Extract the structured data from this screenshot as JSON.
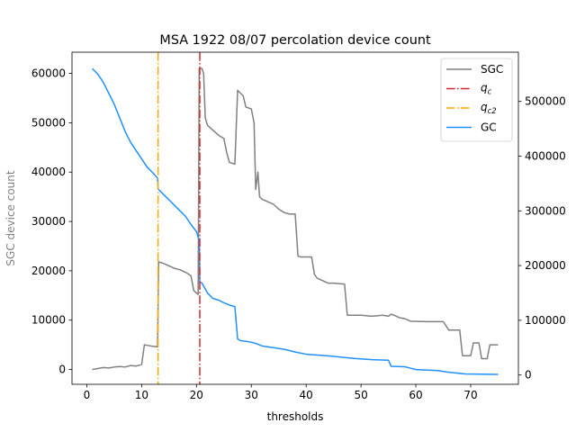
{
  "chart_data": {
    "type": "line",
    "title": "MSA 1922 08/07 percolation device count",
    "xlabel": "thresholds",
    "ylabel": "SGC device count",
    "y2label": "",
    "xlim": [
      -2.7,
      78.7
    ],
    "ylim": [
      -3000,
      64300
    ],
    "y2lim": [
      -17000,
      590000
    ],
    "xticks": [
      0,
      10,
      20,
      30,
      40,
      50,
      60,
      70
    ],
    "yticks": [
      0,
      10000,
      20000,
      30000,
      40000,
      50000,
      60000
    ],
    "y2ticks": [
      0,
      100000,
      200000,
      300000,
      400000,
      500000
    ],
    "grid": false,
    "legend_position": "top-right",
    "vlines": [
      {
        "name": "$q_c$",
        "label_base": "q",
        "label_sub": "c",
        "x": 20.6,
        "color": "#d62728",
        "style": "dashdot"
      },
      {
        "name": "$q_{c2}$",
        "label_base": "q",
        "label_sub": "c2",
        "x": 13.0,
        "color": "#ffa500",
        "style": "dashdot"
      }
    ],
    "series": [
      {
        "name": "SGC",
        "axis": "left",
        "color": "#808080",
        "points": [
          [
            1,
            0
          ],
          [
            2,
            200
          ],
          [
            3,
            400
          ],
          [
            4,
            300
          ],
          [
            5,
            500
          ],
          [
            6,
            600
          ],
          [
            7,
            500
          ],
          [
            8,
            800
          ],
          [
            9,
            700
          ],
          [
            10,
            1000
          ],
          [
            10.5,
            5000
          ],
          [
            11,
            4900
          ],
          [
            12,
            4700
          ],
          [
            12.9,
            4600
          ],
          [
            13.1,
            21800
          ],
          [
            14,
            21500
          ],
          [
            15,
            21000
          ],
          [
            16,
            20500
          ],
          [
            17,
            20200
          ],
          [
            18,
            19700
          ],
          [
            19,
            19000
          ],
          [
            19.5,
            16000
          ],
          [
            20.3,
            15200
          ],
          [
            20.5,
            61000
          ],
          [
            21,
            61000
          ],
          [
            21.3,
            60000
          ],
          [
            21.6,
            51000
          ],
          [
            22,
            49500
          ],
          [
            23,
            48500
          ],
          [
            24,
            47500
          ],
          [
            25,
            46800
          ],
          [
            25.5,
            44000
          ],
          [
            26,
            42000
          ],
          [
            27,
            41600
          ],
          [
            27.5,
            56600
          ],
          [
            28,
            56000
          ],
          [
            28.5,
            55500
          ],
          [
            29,
            53200
          ],
          [
            30,
            52800
          ],
          [
            30.5,
            50000
          ],
          [
            30.8,
            36500
          ],
          [
            31.2,
            40000
          ],
          [
            31.5,
            35000
          ],
          [
            32,
            34500
          ],
          [
            33,
            34000
          ],
          [
            34,
            33500
          ],
          [
            35,
            32500
          ],
          [
            36,
            31800
          ],
          [
            37,
            31500
          ],
          [
            38,
            31500
          ],
          [
            38.5,
            23000
          ],
          [
            39,
            22800
          ],
          [
            41,
            22800
          ],
          [
            41.5,
            19300
          ],
          [
            42,
            18500
          ],
          [
            43,
            18000
          ],
          [
            44,
            17500
          ],
          [
            45,
            17500
          ],
          [
            47,
            17300
          ],
          [
            47.5,
            11000
          ],
          [
            50,
            11000
          ],
          [
            52,
            10800
          ],
          [
            54,
            11000
          ],
          [
            55,
            10800
          ],
          [
            55.5,
            11200
          ],
          [
            56,
            11000
          ],
          [
            57,
            10500
          ],
          [
            58,
            10300
          ],
          [
            59,
            9800
          ],
          [
            62,
            9700
          ],
          [
            65,
            9700
          ],
          [
            66,
            8000
          ],
          [
            68,
            8000
          ],
          [
            68.5,
            2800
          ],
          [
            70,
            2800
          ],
          [
            70.5,
            5400
          ],
          [
            71.5,
            5400
          ],
          [
            72,
            2200
          ],
          [
            73,
            2200
          ],
          [
            73.5,
            5000
          ],
          [
            75,
            5000
          ]
        ]
      },
      {
        "name": "GC",
        "axis": "right",
        "color": "#1e90ff",
        "points": [
          [
            1,
            560000
          ],
          [
            2,
            550000
          ],
          [
            3,
            535000
          ],
          [
            4,
            515000
          ],
          [
            5,
            495000
          ],
          [
            6,
            470000
          ],
          [
            7,
            445000
          ],
          [
            8,
            425000
          ],
          [
            9,
            410000
          ],
          [
            10,
            395000
          ],
          [
            11,
            380000
          ],
          [
            12,
            370000
          ],
          [
            12.9,
            360000
          ],
          [
            13,
            340000
          ],
          [
            14,
            330000
          ],
          [
            15,
            320000
          ],
          [
            16,
            310000
          ],
          [
            17,
            300000
          ],
          [
            18,
            290000
          ],
          [
            19,
            275000
          ],
          [
            20,
            262000
          ],
          [
            20.5,
            245000
          ],
          [
            20.6,
            170000
          ],
          [
            21,
            168000
          ],
          [
            22,
            150000
          ],
          [
            23,
            140000
          ],
          [
            24,
            137000
          ],
          [
            25,
            132000
          ],
          [
            26,
            128000
          ],
          [
            27,
            125000
          ],
          [
            27.5,
            66000
          ],
          [
            28,
            63000
          ],
          [
            30,
            60000
          ],
          [
            31,
            57000
          ],
          [
            32,
            53000
          ],
          [
            34,
            50000
          ],
          [
            36,
            47000
          ],
          [
            38,
            42000
          ],
          [
            40,
            38000
          ],
          [
            44,
            35000
          ],
          [
            47,
            32000
          ],
          [
            49,
            30000
          ],
          [
            52,
            28000
          ],
          [
            55,
            27000
          ],
          [
            55.5,
            16000
          ],
          [
            58,
            15000
          ],
          [
            60,
            10000
          ],
          [
            64,
            8000
          ],
          [
            66,
            5000
          ],
          [
            69,
            2000
          ],
          [
            75,
            1000
          ]
        ]
      }
    ]
  }
}
